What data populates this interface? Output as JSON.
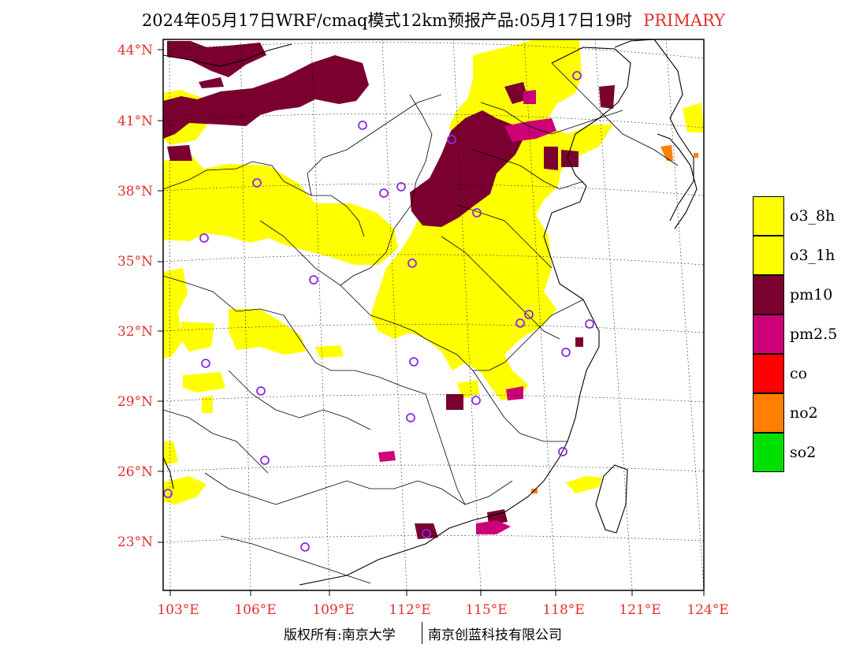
{
  "title": {
    "text": "2024年05月17日WRF/cmaq模式12km预报产品:05月17日19时",
    "tag": "PRIMARY"
  },
  "axes": {
    "latitude_labels": [
      "44°N",
      "41°N",
      "38°N",
      "35°N",
      "32°N",
      "29°N",
      "26°N",
      "23°N"
    ],
    "longitude_labels": [
      "103°E",
      "106°E",
      "109°E",
      "112°E",
      "115°E",
      "118°E",
      "121°E",
      "124°E"
    ]
  },
  "legend": [
    {
      "label": "o3_8h",
      "color": "#ffff00"
    },
    {
      "label": "o3_1h",
      "color": "#ffff00"
    },
    {
      "label": "pm10",
      "color": "#7a0030"
    },
    {
      "label": "pm2.5",
      "color": "#cc0077"
    },
    {
      "label": "co",
      "color": "#ff0000"
    },
    {
      "label": "no2",
      "color": "#ff7f00"
    },
    {
      "label": "so2",
      "color": "#00e000"
    }
  ],
  "footer": {
    "left": "版权所有:南京大学",
    "right": "南京创蓝科技有限公司"
  },
  "colors": {
    "o3": "#ffff00",
    "pm10": "#7a0030",
    "pm25": "#cc0077",
    "no2": "#ff7f00",
    "station_marker": "#8a2be2",
    "label_red": "#e03030"
  }
}
